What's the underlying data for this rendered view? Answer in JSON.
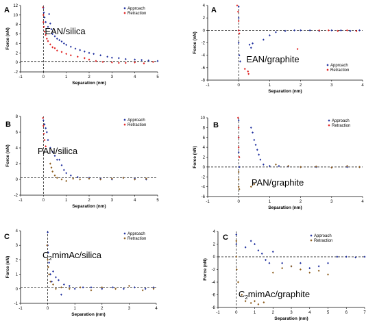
{
  "chart_data": [
    {
      "type": "scatter",
      "panel_label": "A",
      "annotation": "EAN/silica",
      "xlabel": "Separation (nm)",
      "ylabel": "Force (nN)",
      "xlim": [
        -1,
        5
      ],
      "ylim": [
        -2,
        12
      ],
      "xticks": [
        "-1",
        "0",
        "1",
        "2",
        "3",
        "4",
        "5"
      ],
      "yticks": [
        "-2",
        "0",
        "2",
        "4",
        "6",
        "8",
        "10",
        "12"
      ],
      "legend": "top-right",
      "zero_line_y": 0.2,
      "series": [
        {
          "name": "Approach",
          "color": "#1f2f9e",
          "marker": "diamond",
          "x": [
            0.0,
            0.02,
            0.05,
            0.1,
            0.2,
            0.25,
            0.3,
            0.35,
            0.4,
            0.5,
            0.6,
            0.7,
            0.8,
            0.9,
            1.0,
            1.2,
            1.4,
            1.6,
            1.8,
            2.0,
            2.2,
            2.5,
            2.8,
            3.0,
            3.3,
            3.6,
            4.0,
            4.3,
            4.6,
            5.0
          ],
          "y": [
            11.5,
            10.5,
            9.5,
            8.5,
            7.5,
            10.2,
            8.2,
            7.0,
            6.0,
            5.5,
            5.0,
            4.7,
            4.4,
            4.0,
            3.7,
            3.3,
            2.9,
            2.6,
            2.3,
            2.0,
            1.8,
            1.5,
            1.2,
            1.0,
            0.9,
            0.7,
            0.6,
            0.5,
            0.4,
            0.3
          ]
        },
        {
          "name": "Retraction",
          "color": "#e01f1f",
          "marker": "diamond",
          "x": [
            -0.02,
            0.0,
            0.0,
            0.02,
            0.05,
            0.1,
            0.15,
            0.2,
            0.3,
            0.4,
            0.5,
            0.6,
            0.8,
            1.0,
            1.2,
            1.5,
            1.8,
            2.0,
            2.3,
            2.6,
            3.0,
            3.3,
            3.6,
            4.0,
            4.4,
            4.8
          ],
          "y": [
            11.6,
            10.0,
            8.5,
            7.5,
            6.5,
            5.8,
            5.0,
            4.5,
            3.8,
            3.2,
            3.0,
            2.5,
            2.2,
            1.8,
            1.5,
            1.2,
            0.9,
            0.6,
            0.3,
            0.1,
            0.0,
            -0.1,
            -0.1,
            0.0,
            -0.2,
            0.1
          ]
        }
      ]
    },
    {
      "type": "scatter",
      "panel_label": "A",
      "annotation": "EAN/graphite",
      "xlabel": "Separation (nm)",
      "ylabel": "Force (nN)",
      "xlim": [
        -1,
        4
      ],
      "ylim": [
        -8,
        4
      ],
      "xticks": [
        "-1",
        "0",
        "1",
        "2",
        "3",
        "4"
      ],
      "yticks": [
        "-8",
        "-6",
        "-4",
        "-2",
        "0",
        "2",
        "4"
      ],
      "legend": "center-right",
      "zero_line_y": 0,
      "series": [
        {
          "name": "Approach",
          "color": "#1f2f9e",
          "marker": "diamond",
          "x": [
            0.0,
            0.0,
            0.0,
            0.0,
            0.02,
            0.05,
            0.35,
            0.4,
            0.45,
            0.8,
            1.0,
            1.2,
            1.5,
            1.8,
            2.0,
            2.3,
            2.6,
            3.0,
            3.3,
            3.6,
            3.9
          ],
          "y": [
            3.8,
            2.0,
            0.0,
            -2.0,
            -4.0,
            -5.0,
            -2.3,
            -2.8,
            -2.1,
            -1.5,
            -0.8,
            -0.3,
            -0.1,
            0.0,
            0.0,
            0.0,
            -0.1,
            0.0,
            0.0,
            -0.1,
            0.0
          ]
        },
        {
          "name": "Retraction",
          "color": "#e01f1f",
          "marker": "diamond",
          "x": [
            -0.05,
            -0.02,
            0.0,
            0.0,
            0.02,
            0.2,
            0.3,
            0.32,
            1.9,
            2.6,
            2.9,
            3.2,
            3.5,
            3.8
          ],
          "y": [
            4.0,
            3.0,
            1.5,
            0.0,
            -0.5,
            -6.2,
            -6.6,
            -7.0,
            -3.0,
            0.0,
            0.0,
            -0.1,
            0.0,
            -0.1
          ]
        }
      ]
    },
    {
      "type": "scatter",
      "panel_label": "B",
      "annotation": "PAN/silica",
      "xlabel": "Separation (nm)",
      "ylabel": "Force (nN)",
      "xlim": [
        -1,
        5
      ],
      "ylim": [
        -2,
        8
      ],
      "xticks": [
        "-1",
        "0",
        "1",
        "2",
        "3",
        "4",
        "5"
      ],
      "yticks": [
        "-2",
        "0",
        "2",
        "4",
        "6",
        "8"
      ],
      "legend": "top-right",
      "zero_line_y": 0.2,
      "series": [
        {
          "name": "Approach",
          "color": "#1f2f9e",
          "marker": "diamond",
          "x": [
            0.0,
            0.05,
            0.1,
            0.15,
            0.2,
            0.3,
            0.4,
            0.5,
            0.6,
            0.7,
            0.8,
            0.9,
            1.0,
            1.2,
            1.5,
            2.0,
            2.5,
            3.0,
            3.5,
            4.0,
            4.5
          ],
          "y": [
            7.5,
            7.0,
            6.5,
            6.0,
            5.0,
            4.0,
            3.5,
            3.0,
            2.5,
            2.5,
            1.8,
            1.2,
            0.8,
            0.5,
            0.3,
            0.2,
            0.1,
            0.0,
            0.2,
            0.1,
            0.0
          ]
        },
        {
          "name": "Retraction",
          "color": "#e01f1f",
          "marker": "diamond",
          "x": [
            -0.02,
            0.0,
            0.02,
            0.05,
            0.1
          ],
          "y": [
            7.8,
            6.8,
            5.8,
            5.0,
            4.2
          ]
        },
        {
          "name": "",
          "color": "#8a5a1a",
          "marker": "diamond",
          "x": [
            0.3,
            0.35,
            0.4,
            0.5,
            0.6,
            0.8,
            1.0,
            1.3,
            1.6,
            2.0,
            2.5,
            3.0,
            3.5,
            4.0,
            4.5
          ],
          "y": [
            2.0,
            1.5,
            1.0,
            0.5,
            0.2,
            0.0,
            -0.2,
            0.1,
            0.0,
            0.1,
            0.0,
            0.1,
            0.2,
            0.0,
            0.1
          ]
        }
      ]
    },
    {
      "type": "scatter",
      "panel_label": "B",
      "annotation": "PAN/graphite",
      "xlabel": "Separation (nm)",
      "ylabel": "Force (nN)",
      "xlim": [
        -1,
        4
      ],
      "ylim": [
        -6,
        10
      ],
      "xticks": [
        "-1",
        "0",
        "1",
        "2",
        "3",
        "4"
      ],
      "yticks": [
        "-6",
        "-4",
        "-2",
        "0",
        "2",
        "4",
        "6",
        "8",
        "10"
      ],
      "legend": "top-right",
      "zero_line_y": 0,
      "series": [
        {
          "name": "Approach",
          "color": "#1f2f9e",
          "marker": "diamond",
          "x": [
            0.0,
            0.0,
            0.0,
            0.02,
            0.4,
            0.45,
            0.5,
            0.55,
            0.6,
            0.65,
            0.7,
            0.8,
            1.0,
            1.3,
            1.6,
            2.0,
            2.5,
            3.0,
            3.5,
            3.9
          ],
          "y": [
            9.5,
            6.0,
            3.0,
            0.0,
            8.0,
            7.0,
            5.5,
            4.5,
            3.5,
            2.5,
            1.5,
            0.5,
            0.2,
            0.2,
            0.1,
            0.0,
            0.0,
            -0.1,
            0.0,
            0.0
          ]
        },
        {
          "name": "Retraction",
          "color": "#e01f1f",
          "marker": "diamond",
          "x": [
            -0.02,
            0.0,
            0.0,
            0.0,
            0.02
          ],
          "y": [
            10.0,
            8.0,
            6.0,
            4.0,
            2.0
          ]
        },
        {
          "name": "",
          "color": "#8a5a1a",
          "marker": "diamond",
          "x": [
            0.0,
            0.0,
            0.0,
            0.02,
            0.4,
            0.5,
            1.2,
            1.6,
            2.0,
            2.5,
            3.0,
            3.5,
            3.9
          ],
          "y": [
            -1.0,
            -2.5,
            -4.0,
            -4.5,
            -4.0,
            -3.5,
            0.5,
            0.2,
            0.0,
            0.1,
            -0.1,
            0.2,
            0.0
          ]
        }
      ]
    },
    {
      "type": "scatter",
      "panel_label": "C",
      "annotation": "C2mimAc/silica",
      "xlabel": "Separation (nm)",
      "ylabel": "Force (nN)",
      "xlim": [
        -1,
        4
      ],
      "ylim": [
        -1,
        4
      ],
      "xticks": [
        "-1",
        "0",
        "1",
        "2",
        "3",
        "4"
      ],
      "yticks": [
        "-1",
        "0",
        "1",
        "2",
        "3",
        "4"
      ],
      "legend": "top-right",
      "zero_line_y": 0.1,
      "series": [
        {
          "name": "Approach",
          "color": "#1f2f9e",
          "marker": "diamond",
          "x": [
            0.0,
            0.0,
            0.02,
            0.05,
            0.1,
            0.15,
            0.2,
            0.3,
            0.4,
            0.5,
            0.6,
            0.8,
            1.0,
            1.3,
            1.6,
            2.0,
            2.4,
            2.8,
            3.2,
            3.6,
            3.9
          ],
          "y": [
            3.9,
            3.0,
            2.5,
            1.8,
            1.0,
            0.5,
            1.2,
            0.8,
            0.6,
            -0.4,
            0.3,
            0.2,
            0.0,
            0.1,
            0.1,
            0.0,
            0.1,
            0.0,
            0.1,
            0.0,
            0.1
          ]
        },
        {
          "name": "Retraction",
          "color": "#8a5a1a",
          "marker": "diamond",
          "x": [
            -0.02,
            0.0,
            0.02,
            0.05,
            0.1,
            0.2,
            0.3,
            0.5,
            0.8,
            1.2,
            1.6,
            2.0,
            2.5,
            3.0,
            3.5,
            3.9
          ],
          "y": [
            3.0,
            2.0,
            1.5,
            1.0,
            0.5,
            0.3,
            0.0,
            0.1,
            0.0,
            0.1,
            -0.1,
            0.1,
            0.0,
            0.2,
            -0.1,
            0.0
          ]
        }
      ]
    },
    {
      "type": "scatter",
      "panel_label": "C",
      "annotation": "C2mimAc/graphite",
      "xlabel": "Separation (nm)",
      "ylabel": "Force (nN)",
      "xlim": [
        -1,
        7
      ],
      "ylim": [
        -8,
        4
      ],
      "xticks": [
        "-1",
        "0",
        "1",
        "2",
        "3",
        "4",
        "5",
        "6",
        "7"
      ],
      "yticks": [
        "-8",
        "-6",
        "-4",
        "-2",
        "0",
        "2",
        "4"
      ],
      "legend": "top-right",
      "zero_line_y": 0,
      "series": [
        {
          "name": "Approach",
          "color": "#1f2f9e",
          "marker": "diamond",
          "x": [
            0.0,
            0.0,
            0.5,
            0.8,
            1.0,
            1.2,
            1.4,
            1.6,
            1.8,
            2.0,
            2.5,
            3.0,
            3.5,
            4.0,
            4.5,
            5.0,
            5.5,
            6.0,
            6.5,
            7.0
          ],
          "y": [
            3.5,
            2.0,
            1.5,
            2.5,
            2.0,
            1.0,
            0.5,
            -0.5,
            -1.0,
            0.8,
            -1.0,
            -1.5,
            -1.0,
            -1.8,
            -1.5,
            -1.0,
            0.0,
            0.0,
            -0.1,
            0.0
          ]
        },
        {
          "name": "Retraction",
          "color": "#8a5a1a",
          "marker": "diamond",
          "x": [
            0.0,
            0.0,
            0.02,
            0.1,
            0.3,
            0.5,
            0.8,
            1.0,
            1.2,
            1.5,
            2.0,
            2.5,
            3.0,
            3.5,
            4.0,
            4.5,
            5.0
          ],
          "y": [
            2.5,
            0.0,
            -2.0,
            -4.0,
            -6.0,
            -7.0,
            -7.3,
            -7.0,
            -7.5,
            -7.2,
            -2.5,
            -1.8,
            -1.5,
            -2.0,
            -2.5,
            -2.2,
            -2.8
          ]
        }
      ]
    }
  ]
}
